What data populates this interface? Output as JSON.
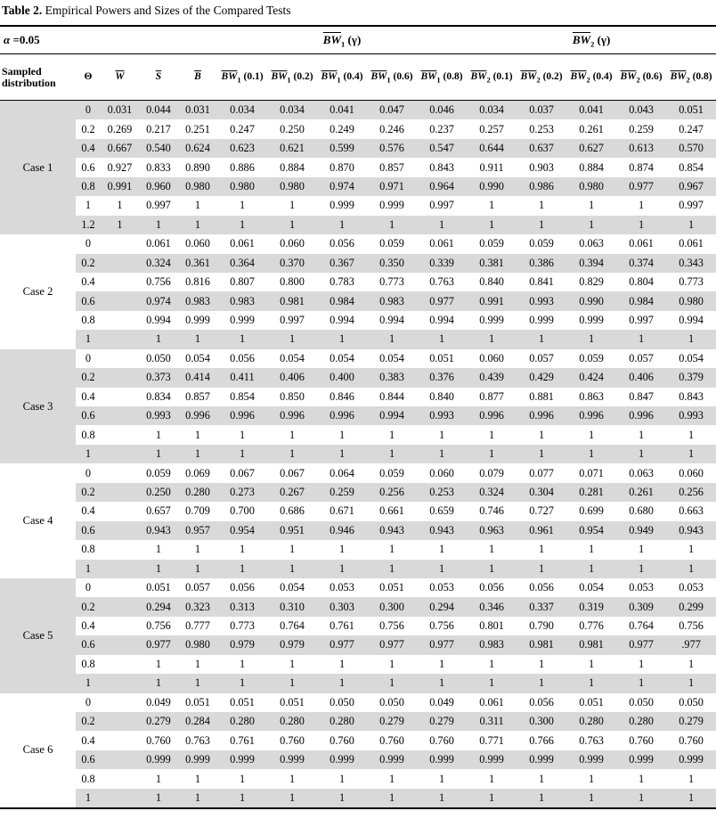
{
  "title": {
    "bold": "Table 2.",
    "rest": " Empirical Powers and Sizes of the Compared Tests"
  },
  "alpha": {
    "symbol": "α",
    "rest": " =0.05"
  },
  "groups": [
    {
      "over": "BW",
      "sub": "1",
      "arg": "(γ)"
    },
    {
      "over": "BW",
      "sub": "2",
      "arg": "(γ)"
    }
  ],
  "col_headers": [
    {
      "kind": "lines",
      "lines": [
        "Sampled",
        "distribution"
      ]
    },
    {
      "kind": "text",
      "text": "Θ"
    },
    {
      "kind": "math",
      "over": "W"
    },
    {
      "kind": "math",
      "over": "S"
    },
    {
      "kind": "math",
      "over": "B"
    },
    {
      "kind": "math",
      "over": "BW",
      "sub": "1",
      "arg": "(0.1)"
    },
    {
      "kind": "math",
      "over": "BW",
      "sub": "1",
      "arg": "(0.2)"
    },
    {
      "kind": "math",
      "over": "BW",
      "sub": "1",
      "arg": "(0.4)"
    },
    {
      "kind": "math",
      "over": "BW",
      "sub": "1",
      "arg": "(0.6)"
    },
    {
      "kind": "math",
      "over": "BW",
      "sub": "1",
      "arg": "(0.8)"
    },
    {
      "kind": "math",
      "over": "BW",
      "sub": "2",
      "arg": "(0.1)"
    },
    {
      "kind": "math",
      "over": "BW",
      "sub": "2",
      "arg": "(0.2)"
    },
    {
      "kind": "math",
      "over": "BW",
      "sub": "2",
      "arg": "(0.4)"
    },
    {
      "kind": "math",
      "over": "BW",
      "sub": "2",
      "arg": "(0.6)"
    },
    {
      "kind": "math",
      "over": "BW",
      "sub": "2",
      "arg": "(0.8)"
    }
  ],
  "cases": [
    {
      "label": "Case 1",
      "rows": [
        {
          "theta": "0",
          "values": [
            "0.031",
            "0.044",
            "0.031",
            "0.034",
            "0.034",
            "0.041",
            "0.047",
            "0.046",
            "0.034",
            "0.037",
            "0.041",
            "0.043",
            "0.051"
          ]
        },
        {
          "theta": "0.2",
          "values": [
            "0.269",
            "0.217",
            "0.251",
            "0.247",
            "0.250",
            "0.249",
            "0.246",
            "0.237",
            "0.257",
            "0.253",
            "0.261",
            "0.259",
            "0.247"
          ]
        },
        {
          "theta": "0.4",
          "values": [
            "0.667",
            "0.540",
            "0.624",
            "0.623",
            "0.621",
            "0.599",
            "0.576",
            "0.547",
            "0.644",
            "0.637",
            "0.627",
            "0.613",
            "0.570"
          ]
        },
        {
          "theta": "0.6",
          "values": [
            "0.927",
            "0.833",
            "0.890",
            "0.886",
            "0.884",
            "0.870",
            "0.857",
            "0.843",
            "0.911",
            "0.903",
            "0.884",
            "0.874",
            "0.854"
          ]
        },
        {
          "theta": "0.8",
          "values": [
            "0.991",
            "0.960",
            "0.980",
            "0.980",
            "0.980",
            "0.974",
            "0.971",
            "0.964",
            "0.990",
            "0.986",
            "0.980",
            "0.977",
            "0.967"
          ]
        },
        {
          "theta": "1",
          "values": [
            "1",
            "0.997",
            "1",
            "1",
            "1",
            "0.999",
            "0.999",
            "0.997",
            "1",
            "1",
            "1",
            "1",
            "0.997"
          ]
        },
        {
          "theta": "1.2",
          "values": [
            "1",
            "1",
            "1",
            "1",
            "1",
            "1",
            "1",
            "1",
            "1",
            "1",
            "1",
            "1",
            "1"
          ]
        }
      ]
    },
    {
      "label": "Case 2",
      "rows": [
        {
          "theta": "0",
          "values": [
            "",
            "0.061",
            "0.060",
            "0.061",
            "0.060",
            "0.056",
            "0.059",
            "0.061",
            "0.059",
            "0.059",
            "0.063",
            "0.061",
            "0.061"
          ]
        },
        {
          "theta": "0.2",
          "values": [
            "",
            "0.324",
            "0.361",
            "0.364",
            "0.370",
            "0.367",
            "0.350",
            "0.339",
            "0.381",
            "0.386",
            "0.394",
            "0.374",
            "0.343"
          ]
        },
        {
          "theta": "0.4",
          "values": [
            "",
            "0.756",
            "0.816",
            "0.807",
            "0.800",
            "0.783",
            "0.773",
            "0.763",
            "0.840",
            "0.841",
            "0.829",
            "0.804",
            "0.773"
          ]
        },
        {
          "theta": "0.6",
          "values": [
            "",
            "0.974",
            "0.983",
            "0.983",
            "0.981",
            "0.984",
            "0.983",
            "0.977",
            "0.991",
            "0.993",
            "0.990",
            "0.984",
            "0.980"
          ]
        },
        {
          "theta": "0.8",
          "values": [
            "",
            "0.994",
            "0.999",
            "0.999",
            "0.997",
            "0.994",
            "0.994",
            "0.994",
            "0.999",
            "0.999",
            "0.999",
            "0.997",
            "0.994"
          ]
        },
        {
          "theta": "1",
          "values": [
            "",
            "1",
            "1",
            "1",
            "1",
            "1",
            "1",
            "1",
            "1",
            "1",
            "1",
            "1",
            "1"
          ]
        }
      ]
    },
    {
      "label": "Case 3",
      "rows": [
        {
          "theta": "0",
          "values": [
            "",
            "0.050",
            "0.054",
            "0.056",
            "0.054",
            "0.054",
            "0.054",
            "0.051",
            "0.060",
            "0.057",
            "0.059",
            "0.057",
            "0.054"
          ]
        },
        {
          "theta": "0.2",
          "values": [
            "",
            "0.373",
            "0.414",
            "0.411",
            "0.406",
            "0.400",
            "0.383",
            "0.376",
            "0.439",
            "0.429",
            "0.424",
            "0.406",
            "0.379"
          ]
        },
        {
          "theta": "0.4",
          "values": [
            "",
            "0.834",
            "0.857",
            "0.854",
            "0.850",
            "0.846",
            "0.844",
            "0.840",
            "0.877",
            "0.881",
            "0.863",
            "0.847",
            "0.843"
          ]
        },
        {
          "theta": "0.6",
          "values": [
            "",
            "0.993",
            "0.996",
            "0.996",
            "0.996",
            "0.996",
            "0.994",
            "0.993",
            "0.996",
            "0.996",
            "0.996",
            "0.996",
            "0.993"
          ]
        },
        {
          "theta": "0.8",
          "values": [
            "",
            "1",
            "1",
            "1",
            "1",
            "1",
            "1",
            "1",
            "1",
            "1",
            "1",
            "1",
            "1"
          ]
        },
        {
          "theta": "1",
          "values": [
            "",
            "1",
            "1",
            "1",
            "1",
            "1",
            "1",
            "1",
            "1",
            "1",
            "1",
            "1",
            "1"
          ]
        }
      ]
    },
    {
      "label": "Case 4",
      "rows": [
        {
          "theta": "0",
          "values": [
            "",
            "0.059",
            "0.069",
            "0.067",
            "0.067",
            "0.064",
            "0.059",
            "0.060",
            "0.079",
            "0.077",
            "0.071",
            "0.063",
            "0.060"
          ]
        },
        {
          "theta": "0.2",
          "values": [
            "",
            "0.250",
            "0.280",
            "0.273",
            "0.267",
            "0.259",
            "0.256",
            "0.253",
            "0.324",
            "0.304",
            "0.281",
            "0.261",
            "0.256"
          ]
        },
        {
          "theta": "0.4",
          "values": [
            "",
            "0.657",
            "0.709",
            "0.700",
            "0.686",
            "0.671",
            "0.661",
            "0.659",
            "0.746",
            "0.727",
            "0.699",
            "0.680",
            "0.663"
          ]
        },
        {
          "theta": "0.6",
          "values": [
            "",
            "0.943",
            "0.957",
            "0.954",
            "0.951",
            "0.946",
            "0.943",
            "0.943",
            "0.963",
            "0.961",
            "0.954",
            "0.949",
            "0.943"
          ]
        },
        {
          "theta": "0.8",
          "values": [
            "",
            "1",
            "1",
            "1",
            "1",
            "1",
            "1",
            "1",
            "1",
            "1",
            "1",
            "1",
            "1"
          ]
        },
        {
          "theta": "1",
          "values": [
            "",
            "1",
            "1",
            "1",
            "1",
            "1",
            "1",
            "1",
            "1",
            "1",
            "1",
            "1",
            "1"
          ]
        }
      ]
    },
    {
      "label": "Case 5",
      "rows": [
        {
          "theta": "0",
          "values": [
            "",
            "0.051",
            "0.057",
            "0.056",
            "0.054",
            "0.053",
            "0.051",
            "0.053",
            "0.056",
            "0.056",
            "0.054",
            "0.053",
            "0.053"
          ]
        },
        {
          "theta": "0.2",
          "values": [
            "",
            "0.294",
            "0.323",
            "0.313",
            "0.310",
            "0.303",
            "0.300",
            "0.294",
            "0.346",
            "0.337",
            "0.319",
            "0.309",
            "0.299"
          ]
        },
        {
          "theta": "0.4",
          "values": [
            "",
            "0.756",
            "0.777",
            "0.773",
            "0.764",
            "0.761",
            "0.756",
            "0.756",
            "0.801",
            "0.790",
            "0.776",
            "0.764",
            "0.756"
          ]
        },
        {
          "theta": "0.6",
          "values": [
            "",
            "0.977",
            "0.980",
            "0.979",
            "0.979",
            "0.977",
            "0.977",
            "0.977",
            "0.983",
            "0.981",
            "0.981",
            "0.977",
            ".977"
          ]
        },
        {
          "theta": "0.8",
          "values": [
            "",
            "1",
            "1",
            "1",
            "1",
            "1",
            "1",
            "1",
            "1",
            "1",
            "1",
            "1",
            "1"
          ]
        },
        {
          "theta": "1",
          "values": [
            "",
            "1",
            "1",
            "1",
            "1",
            "1",
            "1",
            "1",
            "1",
            "1",
            "1",
            "1",
            "1"
          ]
        }
      ]
    },
    {
      "label": "Case 6",
      "rows": [
        {
          "theta": "0",
          "values": [
            "",
            "0.049",
            "0.051",
            "0.051",
            "0.051",
            "0.050",
            "0.050",
            "0.049",
            "0.061",
            "0.056",
            "0.051",
            "0.050",
            "0.050"
          ]
        },
        {
          "theta": "0.2",
          "values": [
            "",
            "0.279",
            "0.284",
            "0.280",
            "0.280",
            "0.280",
            "0.279",
            "0.279",
            "0.311",
            "0.300",
            "0.280",
            "0.280",
            "0.279"
          ]
        },
        {
          "theta": "0.4",
          "values": [
            "",
            "0.760",
            "0.763",
            "0.761",
            "0.760",
            "0.760",
            "0.760",
            "0.760",
            "0.771",
            "0.766",
            "0.763",
            "0.760",
            "0.760"
          ]
        },
        {
          "theta": "0.6",
          "values": [
            "",
            "0.999",
            "0.999",
            "0.999",
            "0.999",
            "0.999",
            "0.999",
            "0.999",
            "0.999",
            "0.999",
            "0.999",
            "0.999",
            "0.999"
          ]
        },
        {
          "theta": "0.8",
          "values": [
            "",
            "1",
            "1",
            "1",
            "1",
            "1",
            "1",
            "1",
            "1",
            "1",
            "1",
            "1",
            "1"
          ]
        },
        {
          "theta": "1",
          "values": [
            "",
            "1",
            "1",
            "1",
            "1",
            "1",
            "1",
            "1",
            "1",
            "1",
            "1",
            "1",
            "1"
          ]
        }
      ]
    }
  ],
  "colors": {
    "row_shade": "#d9d9d9",
    "rule": "#000000",
    "background": "#ffffff"
  }
}
